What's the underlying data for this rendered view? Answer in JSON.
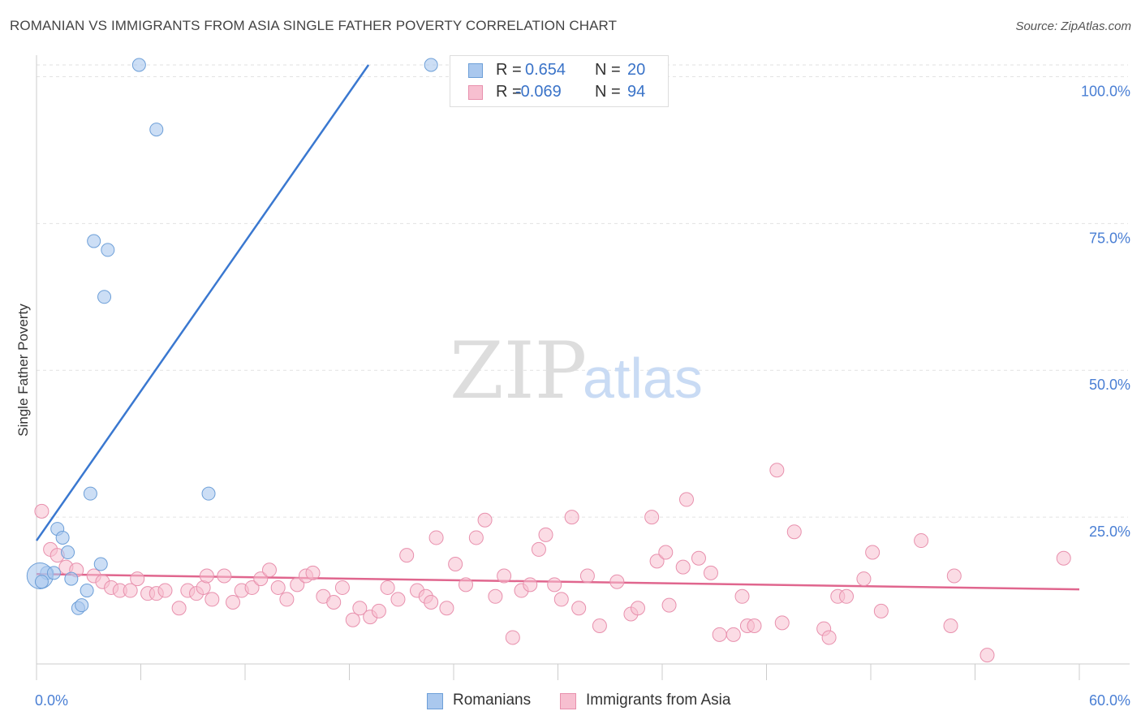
{
  "title": "ROMANIAN VS IMMIGRANTS FROM ASIA SINGLE FATHER POVERTY CORRELATION CHART",
  "source": "Source: ZipAtlas.com",
  "watermark": {
    "zip": "ZIP",
    "atlas": "atlas"
  },
  "legend": {
    "rows": [
      {
        "r_label": "R =",
        "r_value": "0.654",
        "n_label": "N =",
        "n_value": "20"
      },
      {
        "r_label": "R =",
        "r_value": "-0.069",
        "n_label": "N =",
        "n_value": "94"
      }
    ]
  },
  "colors": {
    "blue_fill": "#aac8ee",
    "blue_stroke": "#6d9fd8",
    "blue_line": "#3a78d0",
    "pink_fill": "#f7bfd0",
    "pink_stroke": "#e890ad",
    "pink_line": "#e0668e",
    "axis_text": "#4a7fd4",
    "grid": "#e2e2e2"
  },
  "chart_data": {
    "type": "scatter",
    "title": "ROMANIAN VS IMMIGRANTS FROM ASIA SINGLE FATHER POVERTY CORRELATION CHART",
    "xlabel": "",
    "ylabel": "Single Father Poverty",
    "xlim": [
      0,
      60
    ],
    "ylim": [
      0,
      102
    ],
    "x_tick_labels": [
      "0.0%",
      "60.0%"
    ],
    "y_ticks": [
      25,
      50,
      75,
      100
    ],
    "y_tick_labels": [
      "25.0%",
      "50.0%",
      "75.0%",
      "100.0%"
    ],
    "grid": true,
    "legend_position": "bottom",
    "series": [
      {
        "name": "Romanians",
        "color": "blue",
        "r": 0.654,
        "n": 20,
        "trend": {
          "x": [
            0,
            19.1
          ],
          "y": [
            21.0,
            102.0
          ]
        },
        "points": [
          {
            "x": 5.9,
            "y": 102.0
          },
          {
            "x": 22.7,
            "y": 102.0
          },
          {
            "x": 6.9,
            "y": 91.0
          },
          {
            "x": 3.3,
            "y": 72.0
          },
          {
            "x": 4.1,
            "y": 70.5
          },
          {
            "x": 3.9,
            "y": 62.5
          },
          {
            "x": 3.1,
            "y": 29.0
          },
          {
            "x": 9.9,
            "y": 29.0
          },
          {
            "x": 1.2,
            "y": 23.0
          },
          {
            "x": 1.5,
            "y": 21.5
          },
          {
            "x": 1.8,
            "y": 19.0
          },
          {
            "x": 3.7,
            "y": 17.0
          },
          {
            "x": 0.6,
            "y": 15.5
          },
          {
            "x": 0.2,
            "y": 15.0
          },
          {
            "x": 1.0,
            "y": 15.5
          },
          {
            "x": 2.0,
            "y": 14.5
          },
          {
            "x": 2.9,
            "y": 12.5
          },
          {
            "x": 0.3,
            "y": 14.0
          },
          {
            "x": 2.4,
            "y": 9.5
          },
          {
            "x": 2.6,
            "y": 10.0
          }
        ]
      },
      {
        "name": "Immigrants from Asia",
        "color": "pink",
        "r": -0.069,
        "n": 94,
        "trend": {
          "x": [
            0,
            60
          ],
          "y": [
            15.3,
            12.7
          ]
        },
        "points": [
          {
            "x": 0.3,
            "y": 26.0
          },
          {
            "x": 0.8,
            "y": 19.5
          },
          {
            "x": 1.2,
            "y": 18.5
          },
          {
            "x": 1.7,
            "y": 16.5
          },
          {
            "x": 2.3,
            "y": 16.0
          },
          {
            "x": 3.3,
            "y": 15.0
          },
          {
            "x": 3.8,
            "y": 14.0
          },
          {
            "x": 4.3,
            "y": 13.0
          },
          {
            "x": 4.8,
            "y": 12.5
          },
          {
            "x": 5.4,
            "y": 12.5
          },
          {
            "x": 5.8,
            "y": 14.5
          },
          {
            "x": 6.4,
            "y": 12.0
          },
          {
            "x": 6.9,
            "y": 12.0
          },
          {
            "x": 7.4,
            "y": 12.5
          },
          {
            "x": 8.2,
            "y": 9.5
          },
          {
            "x": 8.7,
            "y": 12.5
          },
          {
            "x": 9.2,
            "y": 12.0
          },
          {
            "x": 9.6,
            "y": 13.0
          },
          {
            "x": 10.1,
            "y": 11.0
          },
          {
            "x": 10.8,
            "y": 15.0
          },
          {
            "x": 11.3,
            "y": 10.5
          },
          {
            "x": 11.8,
            "y": 12.5
          },
          {
            "x": 12.4,
            "y": 13.0
          },
          {
            "x": 12.9,
            "y": 14.5
          },
          {
            "x": 13.4,
            "y": 16.0
          },
          {
            "x": 13.9,
            "y": 13.0
          },
          {
            "x": 14.4,
            "y": 11.0
          },
          {
            "x": 15.0,
            "y": 13.5
          },
          {
            "x": 15.5,
            "y": 15.0
          },
          {
            "x": 15.9,
            "y": 15.5
          },
          {
            "x": 16.5,
            "y": 11.5
          },
          {
            "x": 17.1,
            "y": 10.5
          },
          {
            "x": 17.6,
            "y": 13.0
          },
          {
            "x": 18.2,
            "y": 7.5
          },
          {
            "x": 18.6,
            "y": 9.5
          },
          {
            "x": 19.2,
            "y": 8.0
          },
          {
            "x": 19.7,
            "y": 9.0
          },
          {
            "x": 20.2,
            "y": 13.0
          },
          {
            "x": 20.8,
            "y": 11.0
          },
          {
            "x": 21.3,
            "y": 18.5
          },
          {
            "x": 21.9,
            "y": 12.5
          },
          {
            "x": 22.4,
            "y": 11.5
          },
          {
            "x": 22.7,
            "y": 10.5
          },
          {
            "x": 23.0,
            "y": 21.5
          },
          {
            "x": 23.6,
            "y": 9.5
          },
          {
            "x": 24.1,
            "y": 17.0
          },
          {
            "x": 24.7,
            "y": 13.5
          },
          {
            "x": 25.3,
            "y": 21.5
          },
          {
            "x": 25.8,
            "y": 24.5
          },
          {
            "x": 26.4,
            "y": 11.5
          },
          {
            "x": 26.9,
            "y": 15.0
          },
          {
            "x": 27.4,
            "y": 4.5
          },
          {
            "x": 27.9,
            "y": 12.5
          },
          {
            "x": 28.4,
            "y": 13.5
          },
          {
            "x": 28.9,
            "y": 19.5
          },
          {
            "x": 29.3,
            "y": 22.0
          },
          {
            "x": 29.8,
            "y": 13.5
          },
          {
            "x": 30.2,
            "y": 11.0
          },
          {
            "x": 30.8,
            "y": 25.0
          },
          {
            "x": 31.2,
            "y": 9.5
          },
          {
            "x": 31.7,
            "y": 15.0
          },
          {
            "x": 32.4,
            "y": 6.5
          },
          {
            "x": 33.4,
            "y": 14.0
          },
          {
            "x": 34.2,
            "y": 8.5
          },
          {
            "x": 34.6,
            "y": 9.5
          },
          {
            "x": 35.4,
            "y": 25.0
          },
          {
            "x": 35.7,
            "y": 17.5
          },
          {
            "x": 36.2,
            "y": 19.0
          },
          {
            "x": 37.2,
            "y": 16.5
          },
          {
            "x": 37.4,
            "y": 28.0
          },
          {
            "x": 38.1,
            "y": 18.0
          },
          {
            "x": 38.8,
            "y": 15.5
          },
          {
            "x": 39.3,
            "y": 5.0
          },
          {
            "x": 40.1,
            "y": 5.0
          },
          {
            "x": 40.6,
            "y": 11.5
          },
          {
            "x": 40.9,
            "y": 6.5
          },
          {
            "x": 41.3,
            "y": 6.5
          },
          {
            "x": 42.6,
            "y": 33.0
          },
          {
            "x": 42.9,
            "y": 7.0
          },
          {
            "x": 43.6,
            "y": 22.5
          },
          {
            "x": 45.3,
            "y": 6.0
          },
          {
            "x": 45.6,
            "y": 4.5
          },
          {
            "x": 46.1,
            "y": 11.5
          },
          {
            "x": 46.6,
            "y": 11.5
          },
          {
            "x": 47.6,
            "y": 14.5
          },
          {
            "x": 48.1,
            "y": 19.0
          },
          {
            "x": 48.6,
            "y": 9.0
          },
          {
            "x": 50.9,
            "y": 21.0
          },
          {
            "x": 52.6,
            "y": 6.5
          },
          {
            "x": 52.8,
            "y": 15.0
          },
          {
            "x": 54.7,
            "y": 1.5
          },
          {
            "x": 59.1,
            "y": 18.0
          },
          {
            "x": 36.4,
            "y": 10.0
          },
          {
            "x": 9.8,
            "y": 15.0
          }
        ]
      }
    ]
  },
  "bottom_legend": [
    "Romanians",
    "Immigrants from Asia"
  ]
}
